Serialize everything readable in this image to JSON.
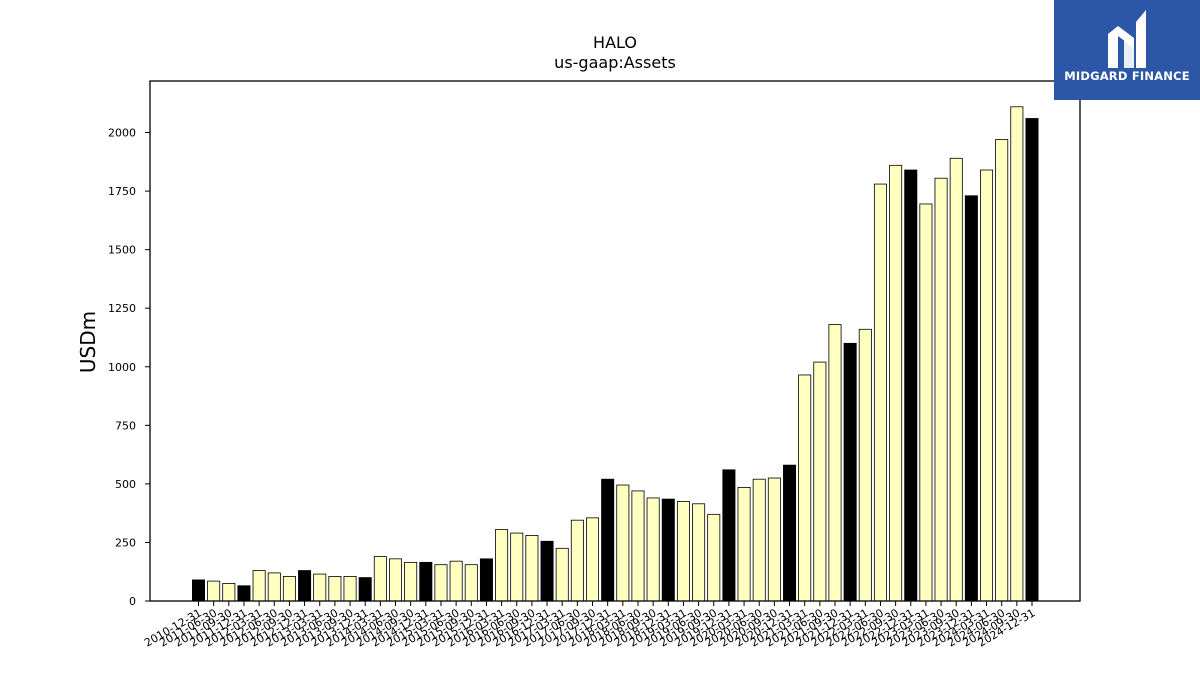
{
  "brand": {
    "name": "MIDGARD FINANCE",
    "bg_color": "#2b57a6"
  },
  "colors": {
    "year_end_bar": "#000000",
    "quarter_bar": "#ffffc0",
    "bar_edge": "#000000"
  },
  "chart_data": {
    "type": "bar",
    "title": "HALO",
    "subtitle": "us-gaap:Assets",
    "xlabel": "",
    "ylabel": "USDm",
    "ylim": [
      0,
      2220
    ],
    "yticks": [
      0,
      250,
      500,
      750,
      1000,
      1250,
      1500,
      1750,
      2000
    ],
    "grid": false,
    "legend": "none",
    "categories": [
      "2010-12-31",
      "2011-06-30",
      "2011-09-30",
      "2011-12-31",
      "2012-03-31",
      "2012-06-30",
      "2012-09-30",
      "2012-12-31",
      "2013-03-31",
      "2013-06-30",
      "2013-09-30",
      "2013-12-31",
      "2014-03-31",
      "2014-06-30",
      "2014-09-30",
      "2014-12-31",
      "2015-03-31",
      "2015-06-30",
      "2015-09-30",
      "2015-12-31",
      "2016-03-31",
      "2016-06-30",
      "2016-09-30",
      "2016-12-31",
      "2017-03-31",
      "2017-06-30",
      "2017-09-30",
      "2017-12-31",
      "2018-03-31",
      "2018-06-30",
      "2018-09-30",
      "2018-12-31",
      "2019-03-31",
      "2019-06-30",
      "2019-09-30",
      "2019-12-31",
      "2020-03-31",
      "2020-06-30",
      "2020-09-30",
      "2020-12-31",
      "2021-03-31",
      "2021-06-30",
      "2021-09-30",
      "2021-12-31",
      "2022-03-31",
      "2022-06-30",
      "2022-09-30",
      "2022-12-31",
      "2023-03-31",
      "2023-06-30",
      "2023-09-30",
      "2023-12-31",
      "2024-03-31",
      "2024-06-30",
      "2024-09-30",
      "2024-12-31"
    ],
    "values": [
      90,
      85,
      75,
      65,
      130,
      120,
      105,
      130,
      115,
      105,
      105,
      100,
      190,
      180,
      165,
      165,
      155,
      170,
      155,
      180,
      305,
      290,
      280,
      255,
      225,
      345,
      355,
      520,
      495,
      470,
      440,
      435,
      425,
      415,
      370,
      560,
      485,
      520,
      525,
      580,
      965,
      1020,
      1180,
      1100,
      1160,
      1780,
      1860,
      1840,
      1695,
      1805,
      1890,
      1730,
      1840,
      1970,
      2110,
      2060
    ],
    "year_end_flags": [
      true,
      false,
      false,
      true,
      false,
      false,
      false,
      true,
      false,
      false,
      false,
      true,
      false,
      false,
      false,
      true,
      false,
      false,
      false,
      true,
      false,
      false,
      false,
      true,
      false,
      false,
      false,
      true,
      false,
      false,
      false,
      true,
      false,
      false,
      false,
      true,
      false,
      false,
      false,
      true,
      false,
      false,
      false,
      true,
      false,
      false,
      false,
      true,
      false,
      false,
      false,
      true,
      false,
      false,
      false,
      true
    ]
  }
}
